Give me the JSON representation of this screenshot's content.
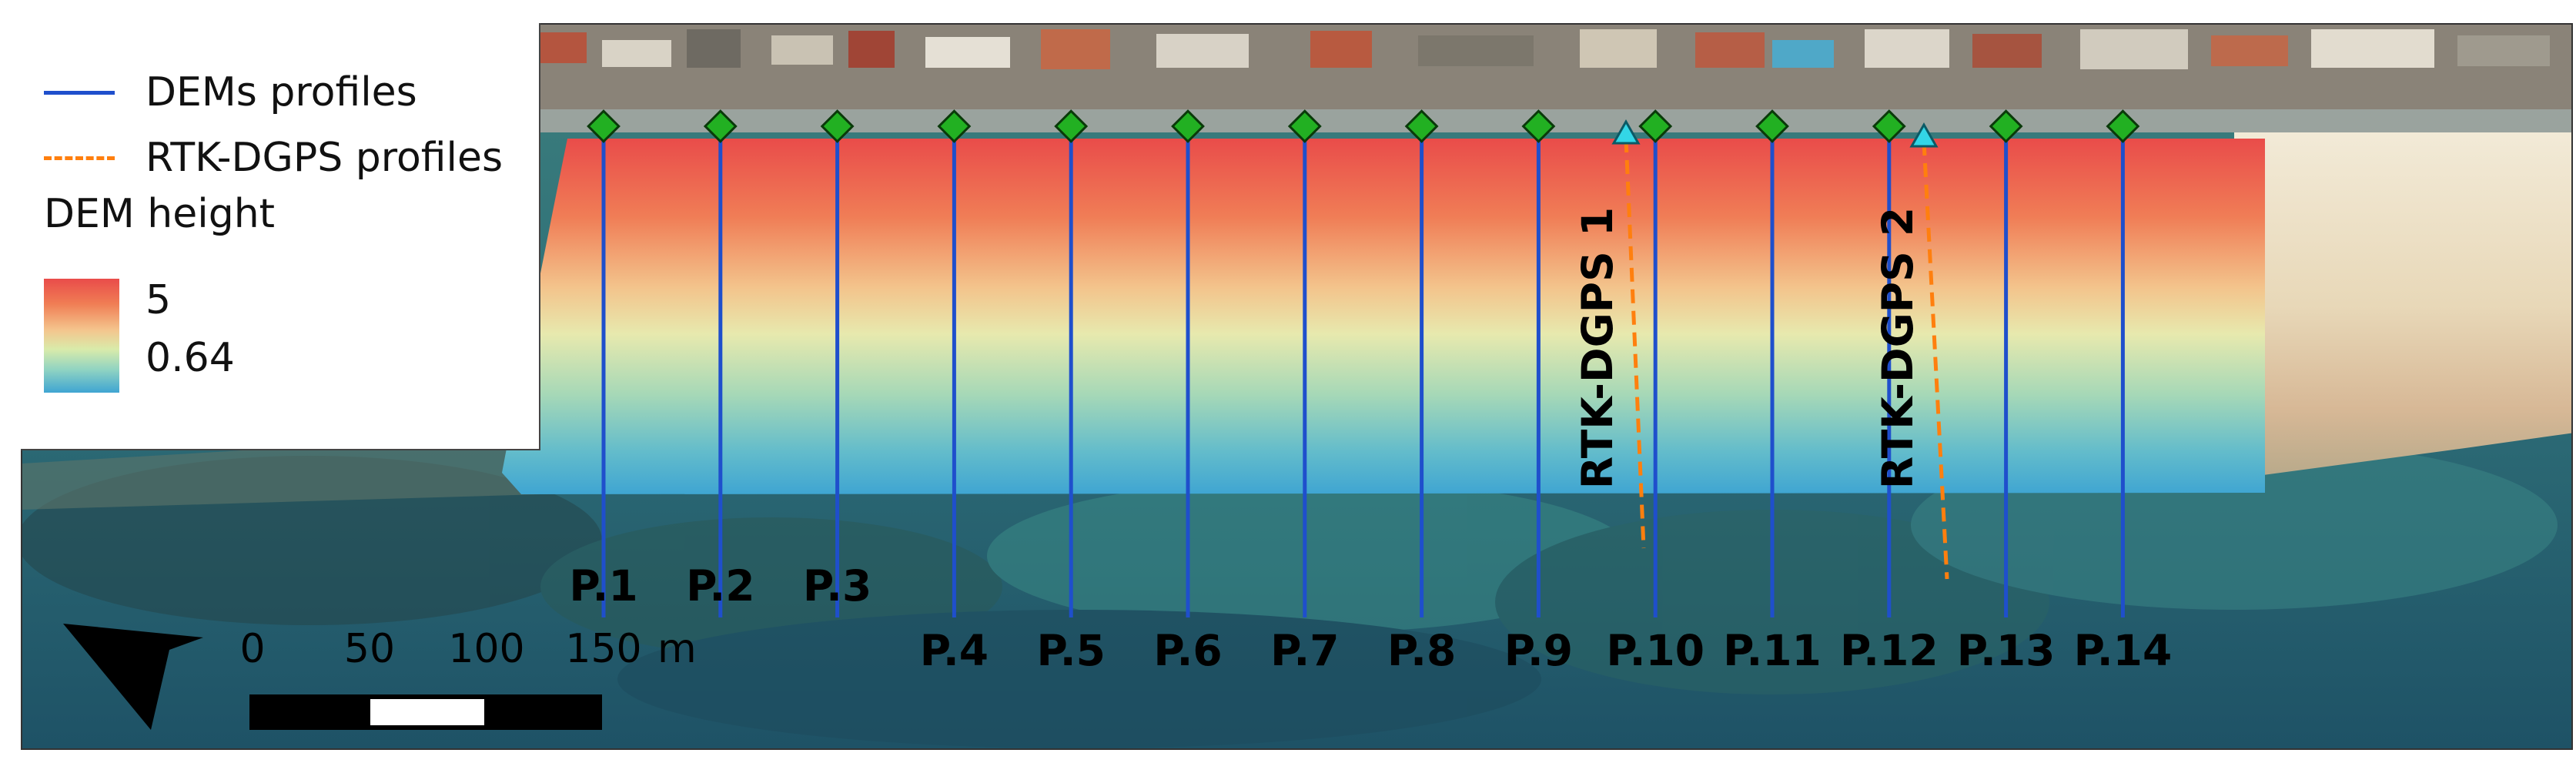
{
  "legend": {
    "dem_profiles_label": "DEMs profiles",
    "rtk_profiles_label": "RTK-DGPS profiles",
    "dem_height_title": "DEM height",
    "dem_height_max": "5",
    "dem_height_min": "0.64"
  },
  "profiles": [
    "P.1",
    "P.2",
    "P.3",
    "P.4",
    "P.5",
    "P.6",
    "P.7",
    "P.8",
    "P.9",
    "P.10",
    "P.11",
    "P.12",
    "P.13",
    "P.14"
  ],
  "rtk_profiles": [
    "RTK-DGPS 1",
    "RTK-DGPS 2"
  ],
  "scale_bar": {
    "ticks": [
      "0",
      "50",
      "100",
      "150"
    ],
    "unit": "m"
  },
  "colors": {
    "dem_profile_line": "#1f4fcc",
    "rtk_profile_line": "#ff7f0e",
    "profile_marker": "#22b022",
    "rtk_marker": "#33d6e6",
    "dem_high": "#e94c4a",
    "dem_low": "#3fa5d2"
  },
  "icons": {
    "north_arrow": "north-arrow-icon",
    "profile_marker": "green-diamond-marker-icon",
    "rtk_marker": "cyan-triangle-marker-icon"
  }
}
